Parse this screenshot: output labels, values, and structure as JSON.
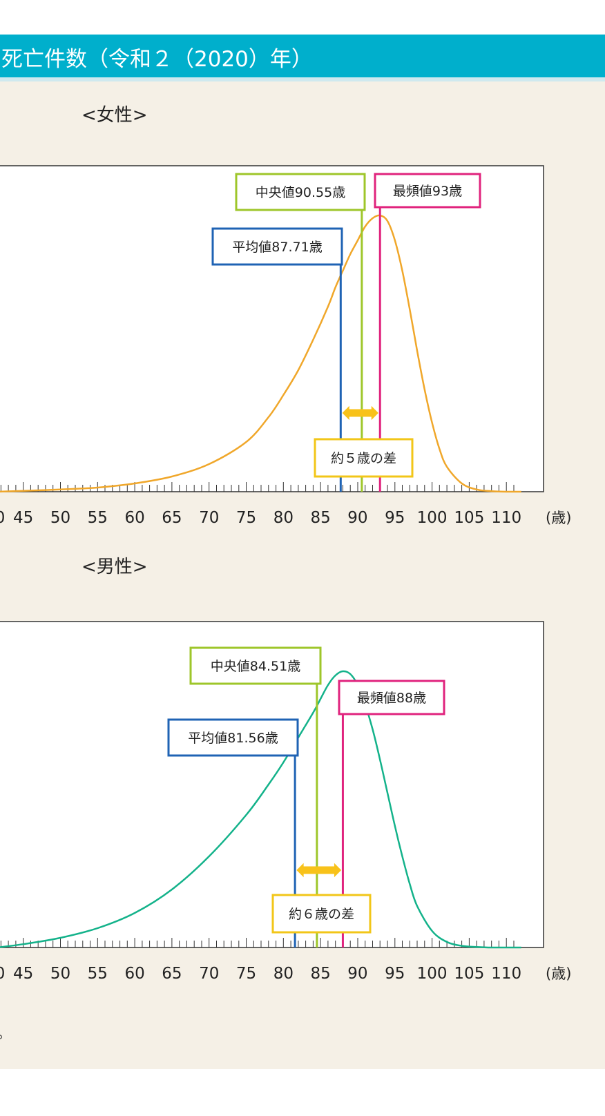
{
  "header": {
    "title": "死亡件数（令和２（2020）年）"
  },
  "footnote": "。",
  "colors": {
    "header_bg": "#00afcc",
    "panel_bg": "#f5f0e6",
    "female_curve": "#f0a72a",
    "male_curve": "#13b28a",
    "mean": "#1f63b4",
    "median": "#9ec62a",
    "mode": "#e0237d",
    "gap_arrow": "#f8c21a",
    "gap_box": "#f2c618"
  },
  "chart_data": [
    {
      "type": "line",
      "title": "<女性>",
      "xlabel": "(歳)",
      "xlim": [
        41.5,
        115
      ],
      "x_ticks": [
        45,
        50,
        55,
        60,
        65,
        70,
        75,
        80,
        85,
        90,
        95,
        100,
        105,
        110
      ],
      "x_tick_labels": [
        "45",
        "50",
        "55",
        "60",
        "65",
        "70",
        "75",
        "80",
        "85",
        "90",
        "95",
        "100",
        "105",
        "110"
      ],
      "edge_tick_label": "0",
      "ylim": [
        0,
        1
      ],
      "grid": false,
      "series": [
        {
          "x": [
            41.5,
            45,
            50,
            55,
            60,
            65,
            70,
            75,
            78,
            80,
            82,
            84,
            86,
            87,
            88,
            89,
            90,
            91,
            92,
            93,
            94,
            95,
            96,
            97,
            98,
            99,
            100,
            101,
            102,
            104,
            106,
            108,
            110,
            112
          ],
          "y": [
            0.0,
            0.003,
            0.008,
            0.015,
            0.03,
            0.055,
            0.1,
            0.18,
            0.27,
            0.35,
            0.44,
            0.55,
            0.67,
            0.74,
            0.8,
            0.86,
            0.91,
            0.96,
            0.99,
            1.0,
            0.98,
            0.91,
            0.8,
            0.66,
            0.51,
            0.37,
            0.25,
            0.155,
            0.09,
            0.03,
            0.008,
            0.002,
            0.0,
            0.0
          ]
        }
      ],
      "annotations": {
        "mean": {
          "label": "平均値87.71歳",
          "value": 87.71
        },
        "median": {
          "label": "中央値90.55歳",
          "value": 90.55
        },
        "mode": {
          "label": "最頻値93歳",
          "value": 93
        },
        "gap": {
          "label": "約５歳の差",
          "from": 87.71,
          "to": 93
        }
      }
    },
    {
      "type": "line",
      "title": "<男性>",
      "xlabel": "(歳)",
      "xlim": [
        41.5,
        115
      ],
      "x_ticks": [
        45,
        50,
        55,
        60,
        65,
        70,
        75,
        80,
        85,
        90,
        95,
        100,
        105,
        110
      ],
      "x_tick_labels": [
        "45",
        "50",
        "55",
        "60",
        "65",
        "70",
        "75",
        "80",
        "85",
        "90",
        "95",
        "100",
        "105",
        "110"
      ],
      "edge_tick_label": "0",
      "ylim": [
        0,
        1
      ],
      "grid": false,
      "series": [
        {
          "x": [
            41.5,
            45,
            50,
            55,
            60,
            65,
            70,
            75,
            78,
            80,
            82,
            84,
            85,
            86,
            87,
            88,
            89,
            90,
            91,
            92,
            93,
            94,
            95,
            96,
            97,
            98,
            100,
            102,
            104,
            106,
            108,
            110,
            112
          ],
          "y": [
            0.0,
            0.012,
            0.035,
            0.07,
            0.125,
            0.21,
            0.33,
            0.48,
            0.59,
            0.67,
            0.76,
            0.85,
            0.9,
            0.95,
            0.985,
            1.0,
            0.99,
            0.95,
            0.88,
            0.79,
            0.68,
            0.56,
            0.44,
            0.33,
            0.23,
            0.15,
            0.06,
            0.02,
            0.006,
            0.002,
            0.0,
            0.0,
            0.0
          ]
        }
      ],
      "annotations": {
        "mean": {
          "label": "平均値81.56歳",
          "value": 81.56
        },
        "median": {
          "label": "中央値84.51歳",
          "value": 84.51
        },
        "mode": {
          "label": "最頻値88歳",
          "value": 88
        },
        "gap": {
          "label": "約６歳の差",
          "from": 81.56,
          "to": 88
        }
      }
    }
  ]
}
